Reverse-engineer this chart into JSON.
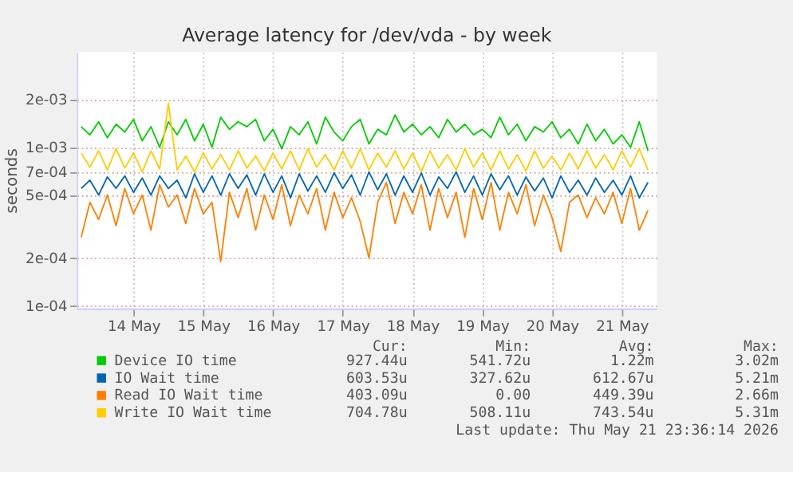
{
  "chart_data": {
    "type": "line",
    "title": "Average latency for /dev/vda - by week",
    "ylabel": "seconds",
    "log": "y",
    "grid": true,
    "legend": "bottom",
    "xlim": [
      "2026-05-13T16:30",
      "2026-05-22T00:00"
    ],
    "xticks": [
      {
        "value": "2026-05-14T12:00",
        "label": "14 May"
      },
      {
        "value": "2026-05-15T12:00",
        "label": "15 May"
      },
      {
        "value": "2026-05-16T12:00",
        "label": "16 May"
      },
      {
        "value": "2026-05-17T12:00",
        "label": "17 May"
      },
      {
        "value": "2026-05-18T12:00",
        "label": "18 May"
      },
      {
        "value": "2026-05-19T12:00",
        "label": "19 May"
      },
      {
        "value": "2026-05-20T12:00",
        "label": "20 May"
      },
      {
        "value": "2026-05-21T12:00",
        "label": "21 May"
      }
    ],
    "ylim": [
      9.6e-05,
      0.004
    ],
    "yticks": [
      {
        "value": 0.0001,
        "label": "1e-04"
      },
      {
        "value": 0.0002,
        "label": "2e-04"
      },
      {
        "value": 0.0005,
        "label": "5e-04"
      },
      {
        "value": 0.0007,
        "label": "7e-04"
      },
      {
        "value": 0.001,
        "label": "1e-03"
      },
      {
        "value": 0.002,
        "label": "2e-03"
      }
    ],
    "x": [
      "2026-05-13T18:00",
      "2026-05-13T21:00",
      "2026-05-14T00:00",
      "2026-05-14T03:00",
      "2026-05-14T06:00",
      "2026-05-14T09:00",
      "2026-05-14T12:00",
      "2026-05-14T15:00",
      "2026-05-14T18:00",
      "2026-05-14T21:00",
      "2026-05-15T00:00",
      "2026-05-15T03:00",
      "2026-05-15T06:00",
      "2026-05-15T09:00",
      "2026-05-15T12:00",
      "2026-05-15T15:00",
      "2026-05-15T18:00",
      "2026-05-15T21:00",
      "2026-05-16T00:00",
      "2026-05-16T03:00",
      "2026-05-16T06:00",
      "2026-05-16T09:00",
      "2026-05-16T12:00",
      "2026-05-16T15:00",
      "2026-05-16T18:00",
      "2026-05-16T21:00",
      "2026-05-17T00:00",
      "2026-05-17T03:00",
      "2026-05-17T06:00",
      "2026-05-17T09:00",
      "2026-05-17T12:00",
      "2026-05-17T15:00",
      "2026-05-17T18:00",
      "2026-05-17T21:00",
      "2026-05-18T00:00",
      "2026-05-18T03:00",
      "2026-05-18T06:00",
      "2026-05-18T09:00",
      "2026-05-18T12:00",
      "2026-05-18T15:00",
      "2026-05-18T18:00",
      "2026-05-18T21:00",
      "2026-05-19T00:00",
      "2026-05-19T03:00",
      "2026-05-19T06:00",
      "2026-05-19T09:00",
      "2026-05-19T12:00",
      "2026-05-19T15:00",
      "2026-05-19T18:00",
      "2026-05-19T21:00",
      "2026-05-20T00:00",
      "2026-05-20T03:00",
      "2026-05-20T06:00",
      "2026-05-20T09:00",
      "2026-05-20T12:00",
      "2026-05-20T15:00",
      "2026-05-20T18:00",
      "2026-05-20T21:00",
      "2026-05-21T00:00",
      "2026-05-21T03:00",
      "2026-05-21T06:00",
      "2026-05-21T09:00",
      "2026-05-21T12:00",
      "2026-05-21T15:00",
      "2026-05-21T18:00",
      "2026-05-21T21:00"
    ],
    "series": [
      {
        "name": "Device IO time",
        "color": "#00cc00",
        "values": [
          0.00135,
          0.0012,
          0.00145,
          0.00115,
          0.0014,
          0.00125,
          0.0015,
          0.0011,
          0.00135,
          0.001,
          0.00145,
          0.0012,
          0.0015,
          0.0011,
          0.0014,
          0.001,
          0.00155,
          0.0013,
          0.00145,
          0.00135,
          0.0015,
          0.0011,
          0.0013,
          0.00098,
          0.00135,
          0.0012,
          0.00145,
          0.00105,
          0.00155,
          0.00125,
          0.0011,
          0.00135,
          0.0015,
          0.00105,
          0.0013,
          0.0012,
          0.0016,
          0.00125,
          0.0014,
          0.0012,
          0.00135,
          0.00115,
          0.0015,
          0.00125,
          0.0014,
          0.0012,
          0.0013,
          0.00115,
          0.00155,
          0.0012,
          0.0014,
          0.0011,
          0.00135,
          0.00125,
          0.00145,
          0.00115,
          0.0013,
          0.00105,
          0.0014,
          0.0011,
          0.0013,
          0.00105,
          0.0012,
          0.001,
          0.00145,
          0.00095
        ]
      },
      {
        "name": "IO Wait time",
        "color": "#0066b3",
        "values": [
          0.00055,
          0.00062,
          0.0005,
          0.00065,
          0.00055,
          0.00066,
          0.00052,
          0.00064,
          0.0005,
          0.00066,
          0.00055,
          0.00062,
          0.00048,
          0.00068,
          0.00052,
          0.00066,
          0.0005,
          0.00068,
          0.00055,
          0.00067,
          0.0005,
          0.00068,
          0.00052,
          0.00066,
          0.00048,
          0.00068,
          0.00053,
          0.00066,
          0.00052,
          0.00069,
          0.00055,
          0.00067,
          0.0005,
          0.0007,
          0.00054,
          0.00068,
          0.0005,
          0.00066,
          0.00052,
          0.00069,
          0.0005,
          0.00065,
          0.00055,
          0.0007,
          0.00052,
          0.00066,
          0.0005,
          0.00068,
          0.00054,
          0.00066,
          0.0005,
          0.00065,
          0.00053,
          0.00064,
          0.00048,
          0.00066,
          0.00052,
          0.00062,
          0.0005,
          0.00064,
          0.00052,
          0.00062,
          0.0005,
          0.00066,
          0.00048,
          0.0006
        ]
      },
      {
        "name": "Read IO Wait time",
        "color": "#ff8000",
        "values": [
          0.00027,
          0.00045,
          0.00035,
          0.0005,
          0.00032,
          0.00055,
          0.00038,
          0.0005,
          0.0003,
          0.00058,
          0.00042,
          0.0005,
          0.00033,
          0.00055,
          0.00038,
          0.00045,
          0.00019,
          0.00052,
          0.00036,
          0.00055,
          0.0003,
          0.0005,
          0.00035,
          0.00058,
          0.00032,
          0.0005,
          0.00038,
          0.00055,
          0.0003,
          0.00052,
          0.00036,
          0.00048,
          0.00034,
          0.0002,
          0.00045,
          0.0006,
          0.00033,
          0.00052,
          0.00038,
          0.00058,
          0.0003,
          0.00055,
          0.00036,
          0.00052,
          0.00027,
          0.00055,
          0.00035,
          0.0006,
          0.0003,
          0.00052,
          0.00038,
          0.00058,
          0.00032,
          0.0005,
          0.00036,
          0.00022,
          0.00045,
          0.0005,
          0.00036,
          0.00048,
          0.00038,
          0.00052,
          0.00033,
          0.00055,
          0.0003,
          0.0004
        ]
      },
      {
        "name": "Write IO Wait time",
        "color": "#ffcc00",
        "values": [
          0.00092,
          0.00075,
          0.00095,
          0.00072,
          0.00098,
          0.00074,
          0.00092,
          0.0007,
          0.00095,
          0.00073,
          0.0019,
          0.00072,
          0.00088,
          0.0007,
          0.00092,
          0.00073,
          0.0009,
          0.00072,
          0.00095,
          0.00074,
          0.00088,
          0.00071,
          0.00092,
          0.00073,
          0.00095,
          0.00072,
          0.00098,
          0.00075,
          0.0009,
          0.00072,
          0.00095,
          0.00074,
          0.00098,
          0.00072,
          0.00092,
          0.00075,
          0.00095,
          0.00073,
          0.00092,
          0.0007,
          0.00095,
          0.00074,
          0.0009,
          0.00072,
          0.00098,
          0.00075,
          0.00092,
          0.00072,
          0.00095,
          0.00073,
          0.0009,
          0.00071,
          0.00095,
          0.00074,
          0.00088,
          0.00072,
          0.00092,
          0.00073,
          0.00095,
          0.00074,
          0.0009,
          0.00072,
          0.00095,
          0.00075,
          0.00098,
          0.00072
        ]
      }
    ],
    "annotations": [
      "Cur: Min: Avg: Max:",
      "927.44u 541.72u 1.22m 3.02m",
      "603.53u 327.62u 612.67u 5.21m",
      "403.09u 0.00 449.39u 2.66m",
      "704.78u 508.11u 743.54u 5.31m",
      "Last update: Thu May 21 23:36:14 2026"
    ]
  }
}
